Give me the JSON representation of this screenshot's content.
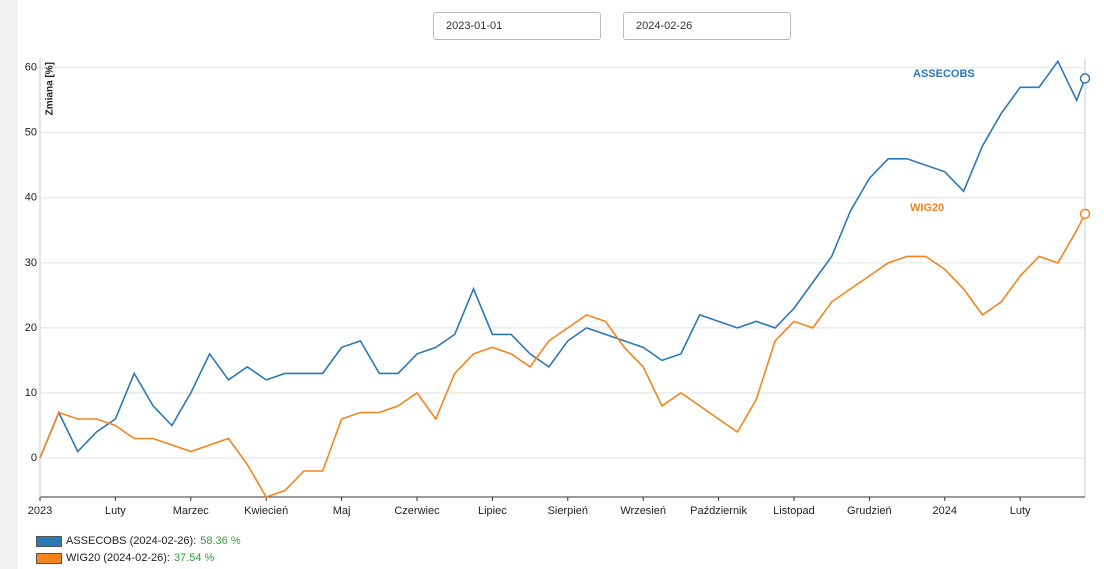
{
  "start_date": "2023-01-01",
  "end_date": "2024-02-26",
  "chart_data": {
    "type": "line",
    "ylabel": "Zmiana [%]",
    "x": [
      0,
      0.25,
      0.5,
      0.75,
      1,
      1.25,
      1.5,
      1.75,
      2,
      2.25,
      2.5,
      2.75,
      3,
      3.25,
      3.5,
      3.75,
      4,
      4.25,
      4.5,
      4.75,
      5,
      5.25,
      5.5,
      5.75,
      6,
      6.25,
      6.5,
      6.75,
      7,
      7.25,
      7.5,
      7.75,
      8,
      8.25,
      8.5,
      8.75,
      9,
      9.25,
      9.5,
      9.75,
      10,
      10.25,
      10.5,
      10.75,
      11,
      11.25,
      11.5,
      11.75,
      12,
      12.25,
      12.5,
      12.75,
      13,
      13.25,
      13.5,
      13.75,
      13.86
    ],
    "series": [
      {
        "name": "ASSECOBS",
        "color": "#2b78b6",
        "legend": "ASSECOBS (2024-02-26):",
        "last_value_label": "58.36 %",
        "values": [
          0,
          7,
          1,
          4,
          6,
          13,
          8,
          5,
          10,
          16,
          12,
          14,
          12,
          13,
          13,
          13,
          17,
          18,
          13,
          13,
          16,
          17,
          19,
          26,
          19,
          19,
          16,
          14,
          18,
          20,
          19,
          18,
          17,
          15,
          16,
          22,
          21,
          20,
          21,
          20,
          23,
          27,
          31,
          38,
          43,
          46,
          46,
          45,
          44,
          41,
          48,
          53,
          57,
          57,
          61,
          55,
          58.36
        ]
      },
      {
        "name": "WIG20",
        "color": "#f5841f",
        "legend": "WIG20 (2024-02-26):",
        "last_value_label": "37.54 %",
        "values": [
          0,
          7,
          6,
          6,
          5,
          3,
          3,
          2,
          1,
          2,
          3,
          -1,
          -6,
          -5,
          -2,
          -2,
          6,
          7,
          7,
          8,
          10,
          6,
          13,
          16,
          17,
          16,
          14,
          18,
          20,
          22,
          21,
          17,
          14,
          8,
          10,
          8,
          6,
          4,
          9,
          18,
          21,
          20,
          24,
          26,
          28,
          30,
          31,
          31,
          29,
          26,
          22,
          24,
          28,
          31,
          30,
          35,
          37.54
        ]
      }
    ],
    "xlim": [
      0,
      13.86
    ],
    "xticks": [
      {
        "value": 0,
        "label": "2023"
      },
      {
        "value": 1,
        "label": "Luty"
      },
      {
        "value": 2,
        "label": "Marzec"
      },
      {
        "value": 3,
        "label": "Kwiecień"
      },
      {
        "value": 4,
        "label": "Maj"
      },
      {
        "value": 5,
        "label": "Czerwiec"
      },
      {
        "value": 6,
        "label": "Lipiec"
      },
      {
        "value": 7,
        "label": "Sierpień"
      },
      {
        "value": 8,
        "label": "Wrzesień"
      },
      {
        "value": 9,
        "label": "Październik"
      },
      {
        "value": 10,
        "label": "Listopad"
      },
      {
        "value": 11,
        "label": "Grudzień"
      },
      {
        "value": 12,
        "label": "2024"
      },
      {
        "value": 13,
        "label": "Luty"
      }
    ],
    "ylim": [
      -6,
      61.5
    ],
    "yticks": [
      0,
      10,
      20,
      30,
      40,
      50,
      60
    ],
    "grid": true
  }
}
